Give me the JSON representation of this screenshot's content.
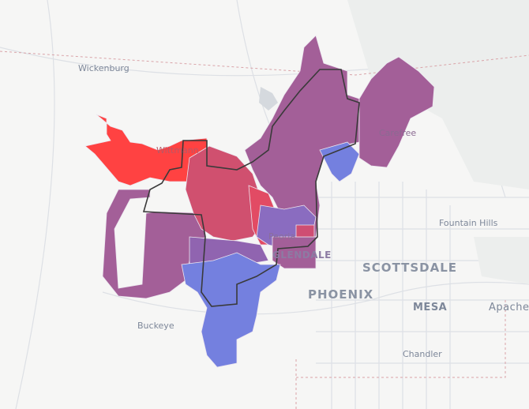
{
  "map": {
    "labels": {
      "wickenburg": "Wickenburg",
      "wittmann": "Wittmann",
      "carefree": "Carefree",
      "fountain_hills": "Fountain Hills",
      "peoria": "Peoria",
      "glendale": "GLENDALE",
      "scottsdale": "SCOTTSDALE",
      "phoenix": "PHOENIX",
      "mesa": "MESA",
      "apache": "Apache",
      "buckeye": "Buckeye",
      "chandler": "Chandler"
    },
    "colors": {
      "red": "#ff4242",
      "red_purple": "#d0506f",
      "purple": "#a35f98",
      "blue_purple": "#8a6cc0",
      "blue": "#7480df",
      "boundary": "#3a3a3a",
      "background": "#f6f6f5"
    }
  }
}
